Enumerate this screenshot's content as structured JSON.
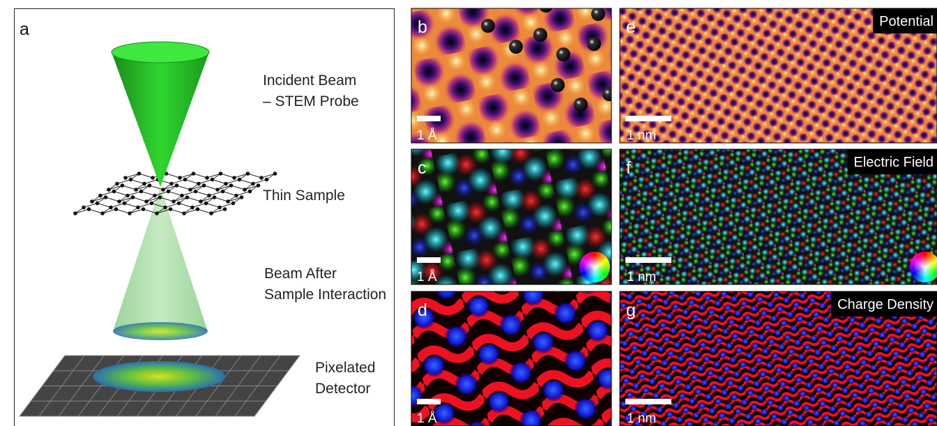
{
  "panel_a": {
    "label": "a",
    "annotations": [
      "Incident Beam",
      "– STEM Probe",
      "Thin Sample",
      "Beam After",
      "Sample Interaction",
      "Pixelated",
      "Detector"
    ]
  },
  "small_panels": [
    {
      "label": "b",
      "scale_bar": "1 Å"
    },
    {
      "label": "c",
      "scale_bar": "1 Å"
    },
    {
      "label": "d",
      "scale_bar": "1 Å"
    }
  ],
  "large_panels": [
    {
      "label": "e",
      "title": "Potential",
      "scale_bar": "1 nm"
    },
    {
      "label": "f",
      "title": "Electric Field",
      "scale_bar": "1 nm"
    },
    {
      "label": "g",
      "title": "Charge Density",
      "scale_bar": "1 nm"
    }
  ]
}
